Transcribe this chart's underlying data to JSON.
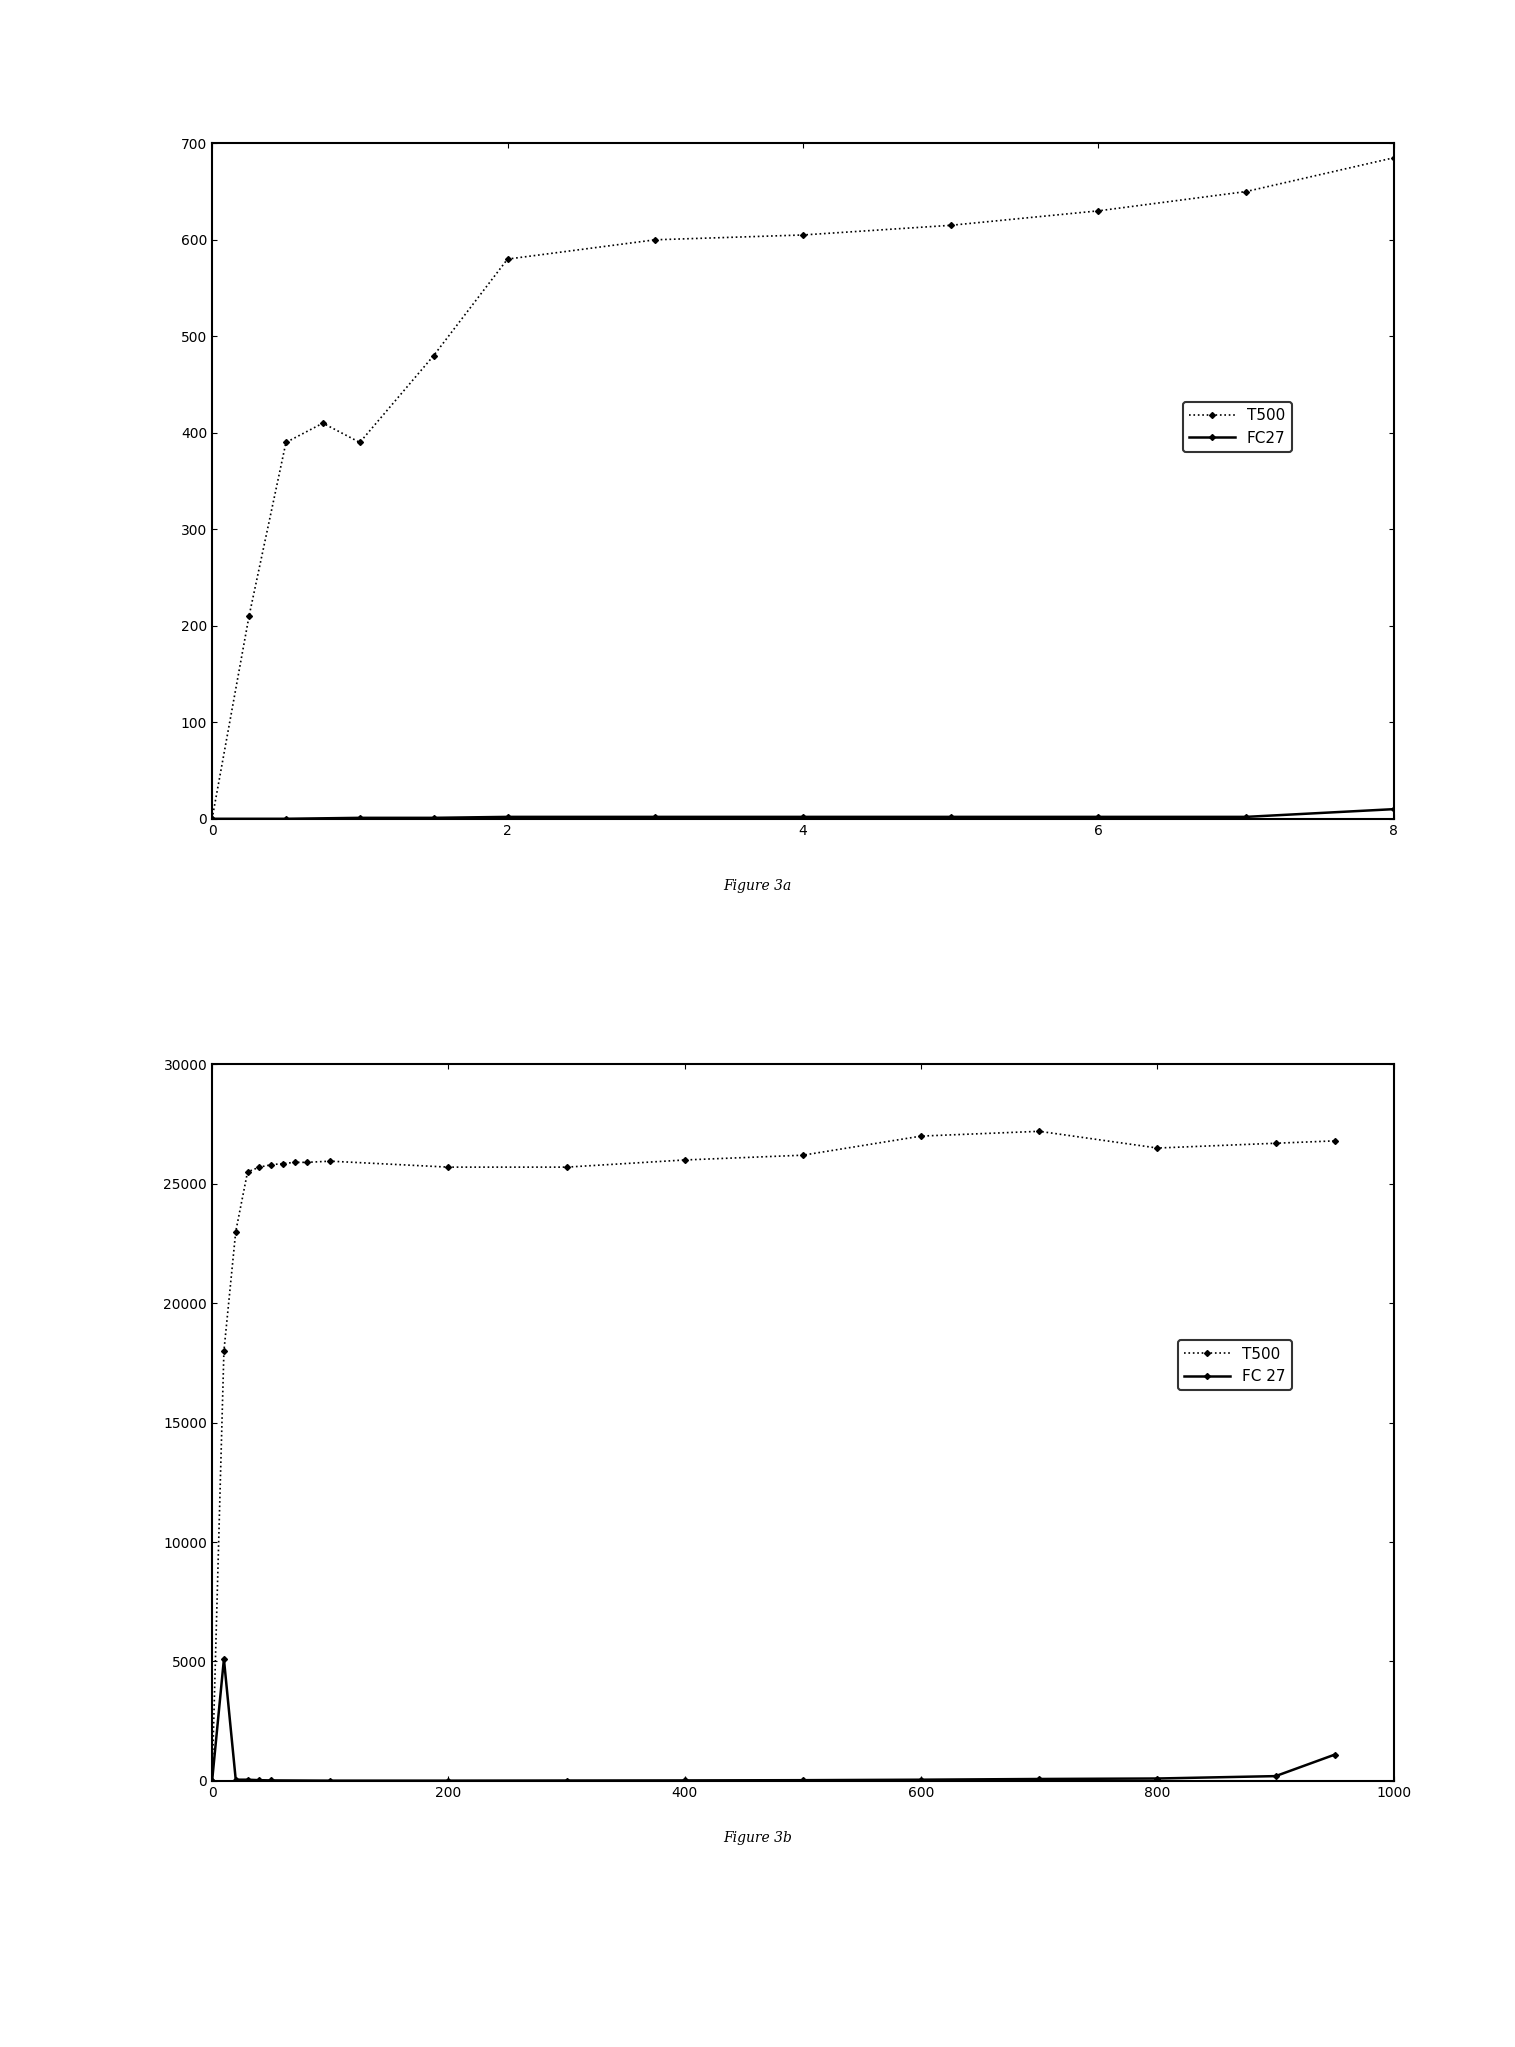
{
  "fig3a": {
    "title": "Figure 3a",
    "t500_x": [
      0,
      0.25,
      0.5,
      0.75,
      1.0,
      1.5,
      2.0,
      3.0,
      4.0,
      5.0,
      6.0,
      7.0,
      8.0
    ],
    "t500_y": [
      0,
      210,
      390,
      410,
      390,
      480,
      580,
      600,
      605,
      615,
      630,
      650,
      685
    ],
    "fc27_x": [
      0,
      0.5,
      1.0,
      1.5,
      2.0,
      3.0,
      4.0,
      5.0,
      6.0,
      7.0,
      8.0
    ],
    "fc27_y": [
      0,
      0,
      1,
      1,
      2,
      2,
      2,
      2,
      2,
      2,
      10
    ],
    "xlim": [
      0,
      8
    ],
    "ylim": [
      0,
      700
    ],
    "yticks": [
      0,
      100,
      200,
      300,
      400,
      500,
      600,
      700
    ],
    "xticks": [
      0,
      2,
      4,
      6,
      8
    ]
  },
  "fig3b": {
    "title": "Figure 3b",
    "t500_x": [
      0,
      10,
      20,
      30,
      40,
      50,
      60,
      70,
      80,
      100,
      200,
      300,
      400,
      500,
      600,
      700,
      800,
      900,
      950
    ],
    "t500_y": [
      0,
      18000,
      23000,
      25500,
      25700,
      25800,
      25850,
      25900,
      25900,
      25950,
      25700,
      25700,
      26000,
      26200,
      27000,
      27200,
      26500,
      26700,
      26800
    ],
    "fc27_x": [
      0,
      10,
      20,
      30,
      40,
      50,
      100,
      200,
      300,
      400,
      500,
      600,
      700,
      800,
      900,
      950
    ],
    "fc27_y": [
      0,
      5100,
      50,
      50,
      30,
      20,
      10,
      10,
      15,
      20,
      30,
      50,
      80,
      100,
      200,
      1100
    ],
    "xlim": [
      0,
      1000
    ],
    "ylim": [
      0,
      30000
    ],
    "yticks": [
      0,
      5000,
      10000,
      15000,
      20000,
      25000,
      30000
    ],
    "xticks": [
      0,
      200,
      400,
      600,
      800,
      1000
    ]
  },
  "line_color": "#000000",
  "marker_t500": "D",
  "marker_fc27": "D",
  "marker_size": 3,
  "legend_t500": "T500",
  "legend_fc27_a": "FC27",
  "legend_fc27_b": "FC 27",
  "bg_color": "#ffffff",
  "font_size": 11,
  "caption_font_size": 10,
  "tick_font_size": 10
}
